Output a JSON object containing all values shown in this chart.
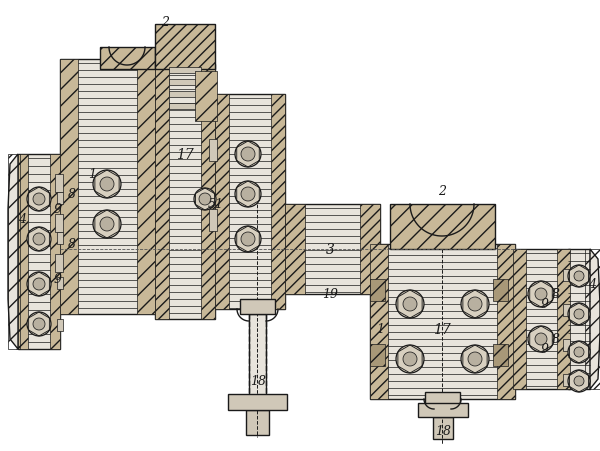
{
  "bg_color": "#ffffff",
  "line_color": "#1a1a1a",
  "figsize": [
    6.0,
    4.52
  ],
  "dpi": 100,
  "lw_main": 1.0,
  "lw_thin": 0.5,
  "gray_light": "#e8e4dc",
  "gray_med": "#d0c8b8",
  "gray_dark": "#a89878",
  "hatch_fill": "#c8b898"
}
